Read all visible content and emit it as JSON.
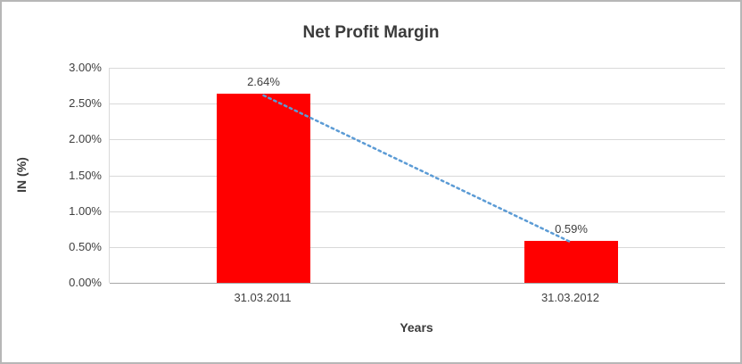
{
  "chart_data": {
    "type": "bar",
    "title": "Net Profit Margin",
    "xlabel": "Years",
    "ylabel": "IN (%)",
    "categories": [
      "31.03.2011",
      "31.03.2012"
    ],
    "series": [
      {
        "name": "Net Profit Margin",
        "values": [
          2.64,
          0.59
        ]
      }
    ],
    "values": [
      2.64,
      0.59
    ],
    "data_labels": [
      "2.64%",
      "0.59%"
    ],
    "y_ticks": [
      {
        "label": "0.00%",
        "value": 0
      },
      {
        "label": "0.50%",
        "value": 0.5
      },
      {
        "label": "1.00%",
        "value": 1.0
      },
      {
        "label": "1.50%",
        "value": 1.5
      },
      {
        "label": "2.00%",
        "value": 2.0
      },
      {
        "label": "2.50%",
        "value": 2.5
      },
      {
        "label": "3.00%",
        "value": 3.0
      }
    ],
    "ylim": [
      0,
      3
    ],
    "grid": true,
    "legend": "none",
    "trendline": {
      "type": "linear",
      "style": "dotted"
    },
    "colors": {
      "bar": "#ff0000",
      "trendline": "#5b9bd5",
      "gridline": "#d9d9d9",
      "axis_line": "#a6a6a6",
      "text": "#404040"
    }
  }
}
